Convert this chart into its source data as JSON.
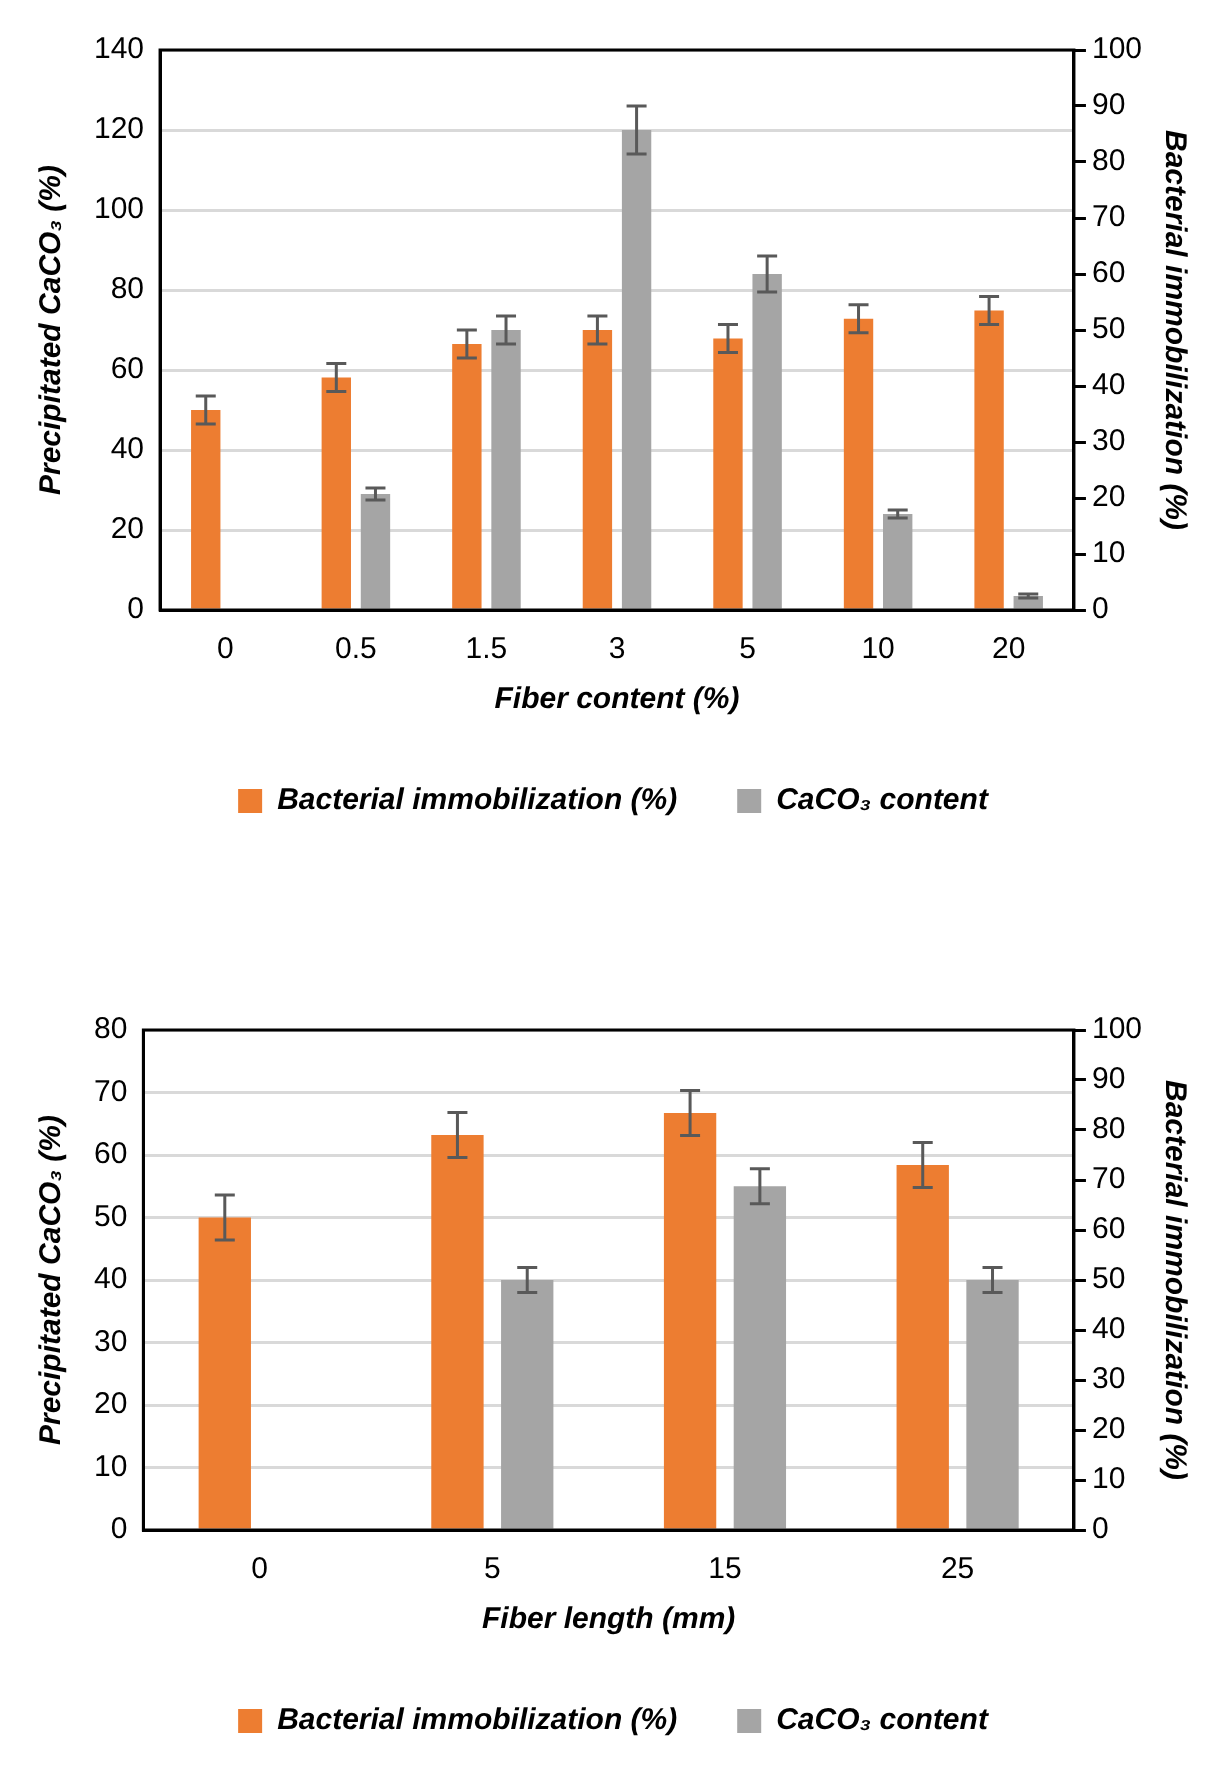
{
  "chart_data": [
    {
      "type": "bar",
      "xlabel": "Fiber content (%)",
      "ylabel": "Precipitated CaCO₃ (%)",
      "y2label": "Bacterial immobilization (%)",
      "categories": [
        "0",
        "0.5",
        "1.5",
        "3",
        "5",
        "10",
        "20"
      ],
      "series": [
        {
          "name": "Bacterial immobilization (%)",
          "color": "#ed7d31",
          "axis": "y2",
          "values": [
            35.7,
            41.5,
            47.5,
            50,
            48.5,
            52,
            53.5
          ],
          "errors": [
            2.5,
            2.5,
            2.5,
            2.5,
            2.5,
            2.5,
            2.5
          ]
        },
        {
          "name": "CaCO₃ content",
          "color": "#a5a5a5",
          "values": [
            null,
            29,
            70,
            120,
            84,
            24,
            3.5
          ],
          "errors": [
            null,
            1.5,
            3.5,
            6,
            4.5,
            1,
            0.5
          ]
        }
      ],
      "ylim": [
        0,
        140
      ],
      "yticks": [
        0,
        20,
        40,
        60,
        80,
        100,
        120,
        140
      ],
      "y2lim": [
        0,
        100
      ],
      "y2ticks": [
        0,
        10,
        20,
        30,
        40,
        50,
        60,
        70,
        80,
        90,
        100
      ],
      "grid": "y",
      "legend": "bottom"
    },
    {
      "type": "bar",
      "xlabel": "Fiber length (mm)",
      "ylabel": "Precipitated CaCO₃ (%)",
      "y2label": "Bacterial immobilization (%)",
      "categories": [
        "0",
        "5",
        "15",
        "25"
      ],
      "series": [
        {
          "name": "Bacterial immobilization (%)",
          "color": "#ed7d31",
          "axis": "y2",
          "values": [
            62.5,
            79,
            83.4,
            73
          ],
          "errors": [
            4.5,
            4.5,
            4.5,
            4.5
          ]
        },
        {
          "name": "CaCO₃ content",
          "color": "#a5a5a5",
          "values": [
            null,
            40,
            55,
            40
          ],
          "errors": [
            null,
            2,
            2.8,
            2
          ]
        }
      ],
      "ylim": [
        0,
        80
      ],
      "yticks": [
        0,
        10,
        20,
        30,
        40,
        50,
        60,
        70,
        80
      ],
      "y2lim": [
        0,
        100
      ],
      "y2ticks": [
        0,
        10,
        20,
        30,
        40,
        50,
        60,
        70,
        80,
        90,
        100
      ],
      "grid": "y",
      "legend": "bottom"
    }
  ]
}
